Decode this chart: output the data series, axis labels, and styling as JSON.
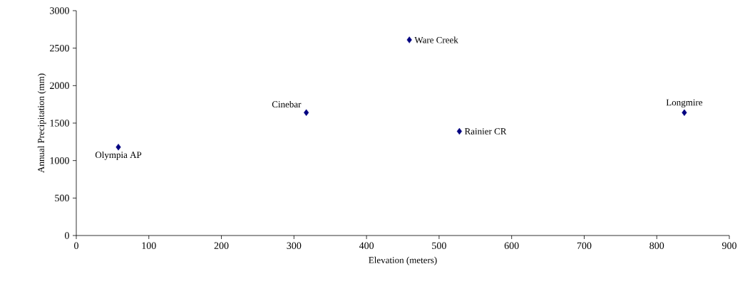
{
  "chart_data": {
    "type": "scatter",
    "xlabel": "Elevation (meters)",
    "ylabel": "Annual Precipitation (mm)",
    "x": [
      58,
      317,
      459,
      528,
      838
    ],
    "values": [
      1180,
      1640,
      2610,
      1390,
      1640
    ],
    "color": "#000080",
    "marker": "diamond",
    "xlim": [
      0,
      900
    ],
    "xticks": [
      0,
      100,
      200,
      300,
      400,
      500,
      600,
      700,
      800,
      900
    ],
    "ylim": [
      0,
      3000
    ],
    "yticks": [
      0,
      500,
      1000,
      1500,
      2000,
      2500,
      3000
    ],
    "annotations": [
      {
        "text": "Olympia AP",
        "x": 58,
        "y": 1180
      },
      {
        "text": "Cinebar",
        "x": 317,
        "y": 1640
      },
      {
        "text": "Ware Creek",
        "x": 459,
        "y": 2610
      },
      {
        "text": "Rainier CR",
        "x": 528,
        "y": 1390
      },
      {
        "text": "Longmire",
        "x": 838,
        "y": 1640
      }
    ]
  }
}
